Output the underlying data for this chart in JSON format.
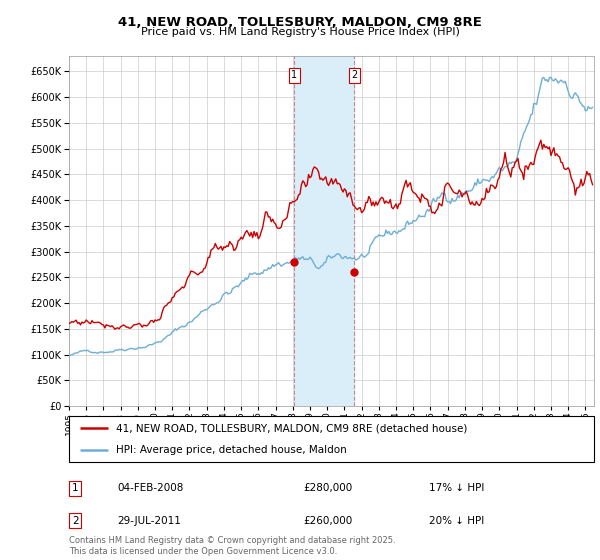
{
  "title": "41, NEW ROAD, TOLLESBURY, MALDON, CM9 8RE",
  "subtitle": "Price paid vs. HM Land Registry's House Price Index (HPI)",
  "ylim": [
    0,
    680000
  ],
  "yticks": [
    0,
    50000,
    100000,
    150000,
    200000,
    250000,
    300000,
    350000,
    400000,
    450000,
    500000,
    550000,
    600000,
    650000
  ],
  "xlim_start": 1995.0,
  "xlim_end": 2025.5,
  "p1_x": 2008.08,
  "p1_y": 280000,
  "p2_x": 2011.58,
  "p2_y": 260000,
  "hpi_color": "#6eaed6",
  "price_color": "#cc0000",
  "shade_color": "#daeef9",
  "legend_label_price": "41, NEW ROAD, TOLLESBURY, MALDON, CM9 8RE (detached house)",
  "legend_label_hpi": "HPI: Average price, detached house, Maldon",
  "note1_date": "04-FEB-2008",
  "note1_price": "£280,000",
  "note1_hpi": "17% ↓ HPI",
  "note2_date": "29-JUL-2011",
  "note2_price": "£260,000",
  "note2_hpi": "20% ↓ HPI",
  "footer": "Contains HM Land Registry data © Crown copyright and database right 2025.\nThis data is licensed under the Open Government Licence v3.0.",
  "background_color": "#ffffff",
  "grid_color": "#cccccc"
}
